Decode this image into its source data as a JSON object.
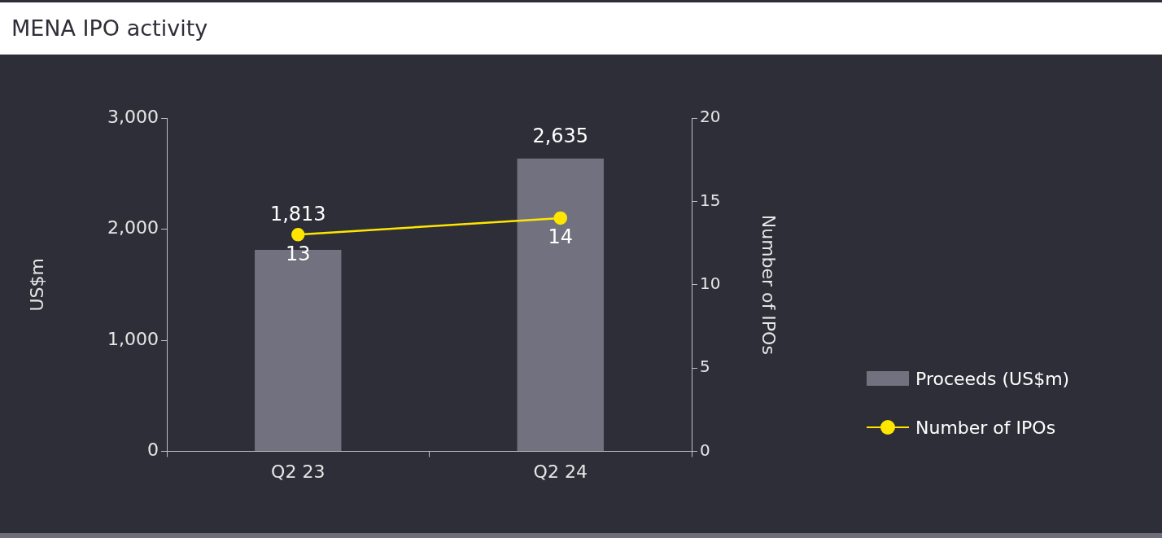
{
  "chart_data": {
    "type": "bar",
    "title": "MENA IPO activity",
    "categories": [
      "Q2 23",
      "Q2 24"
    ],
    "series": [
      {
        "name": "Proceeds (US$m)",
        "type": "bar",
        "color": "#71717f",
        "values": [
          1813,
          2635
        ],
        "value_labels": [
          "1,813",
          "2,635"
        ]
      },
      {
        "name": "Number of IPOs",
        "type": "line",
        "axis": "y2",
        "color": "#ffe600",
        "marker": "circle",
        "values": [
          13,
          14
        ]
      }
    ],
    "ylabel": "US$m",
    "y2label": "Number of IPOs",
    "ylim": [
      0,
      3000
    ],
    "yticks": [
      0,
      {
        "value": 1000,
        "label": "1,000"
      },
      {
        "value": 2000,
        "label": "2,000"
      },
      {
        "value": 3000,
        "label": "3,000"
      }
    ],
    "y2lim": [
      0,
      20
    ],
    "y2ticks": [
      0,
      5,
      10,
      15,
      20
    ],
    "data_labels": true,
    "grid": false,
    "legend": "right"
  }
}
